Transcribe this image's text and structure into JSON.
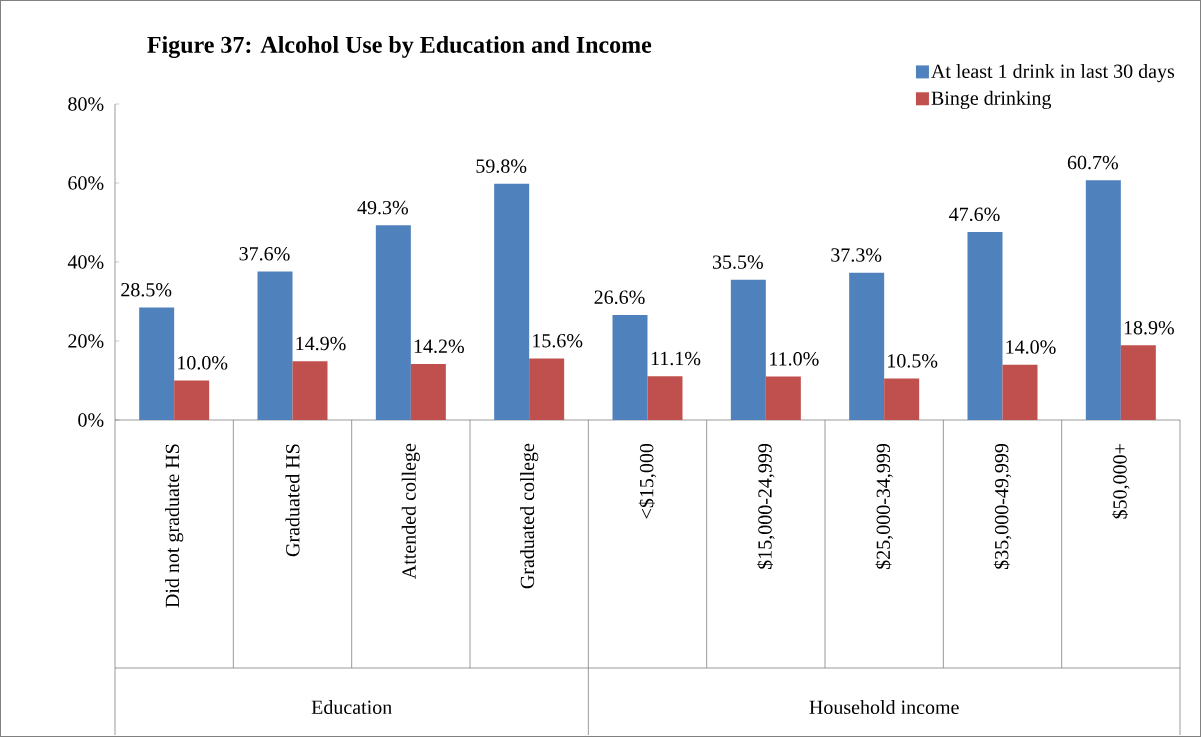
{
  "chart_data": {
    "type": "bar",
    "title": "Figure 37: Alcohol Use by Education and Income",
    "categories": [
      "Did not graduate HS",
      "Graduated HS",
      "Attended college",
      "Graduated college",
      "<$15,000",
      "$15,000-24,999",
      "$25,000-34,999",
      "$35,000-49,999",
      "$50,000+"
    ],
    "series": [
      {
        "name": "At least 1 drink in last 30 days",
        "color": "#4f81bd",
        "values": [
          28.5,
          37.6,
          49.3,
          59.8,
          26.6,
          35.5,
          37.3,
          47.6,
          60.7
        ],
        "value_labels": [
          "28.5%",
          "37.6%",
          "49.3%",
          "59.8%",
          "26.6%",
          "35.5%",
          "37.3%",
          "47.6%",
          "60.7%"
        ]
      },
      {
        "name": "Binge drinking",
        "color": "#c0504d",
        "values": [
          10.0,
          14.9,
          14.2,
          15.6,
          11.1,
          11.0,
          10.5,
          14.0,
          18.9
        ],
        "value_labels": [
          "10.0%",
          "14.9%",
          "14.2%",
          "15.6%",
          "11.1%",
          "11.0%",
          "10.5%",
          "14.0%",
          "18.9%"
        ]
      }
    ],
    "ylim": [
      0,
      80
    ],
    "yticks": [
      {
        "value": 0,
        "label": "0%"
      },
      {
        "value": 20,
        "label": "20%"
      },
      {
        "value": 40,
        "label": "40%"
      },
      {
        "value": 60,
        "label": "60%"
      },
      {
        "value": 80,
        "label": "80%"
      }
    ],
    "annotations": [
      "Education",
      "Household income"
    ],
    "legend": "top right",
    "grid": false
  }
}
